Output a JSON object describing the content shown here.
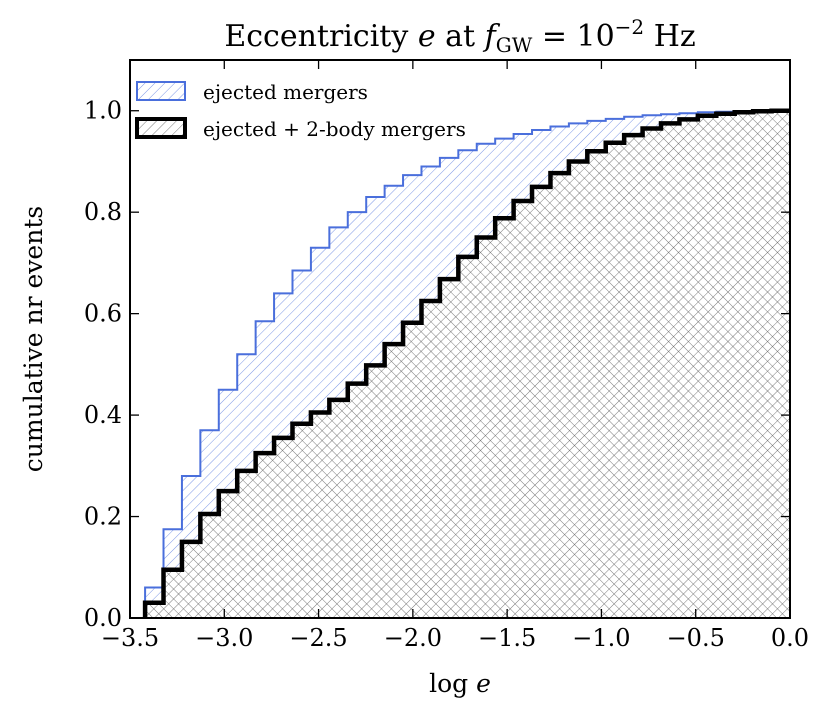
{
  "colors": {
    "ejected": "#4a6fdc",
    "combined": "#000000",
    "hatch_ejected": "#7d97e6",
    "hatch_combined": "#5a5a5a",
    "background": "#ffffff"
  },
  "chart_data": {
    "type": "histogram-step-cumulative",
    "title_parts": {
      "prefix": "Eccentricity ",
      "var_e": "e",
      "at": " at ",
      "f": "f",
      "sub": "GW",
      "eq": " = 10",
      "exp": "−2",
      "unit": " Hz"
    },
    "xlabel": {
      "prefix": "log ",
      "var": "e"
    },
    "ylabel": "cumulative nr events",
    "xlim": [
      -3.5,
      0.0
    ],
    "ylim": [
      0.0,
      1.1
    ],
    "xticks": [
      -3.5,
      -3.0,
      -2.5,
      -2.0,
      -1.5,
      -1.0,
      -0.5,
      0.0
    ],
    "xtick_labels": [
      "−3.5",
      "−3.0",
      "−2.5",
      "−2.0",
      "−1.5",
      "−1.0",
      "−0.5",
      "0.0"
    ],
    "yticks": [
      0.0,
      0.2,
      0.4,
      0.6,
      0.8,
      1.0
    ],
    "ytick_labels": [
      "0.0",
      "0.2",
      "0.4",
      "0.6",
      "0.8",
      "1.0"
    ],
    "grid": false,
    "legend": {
      "position": "top-left",
      "entries": [
        "ejected mergers",
        "ejected + 2-body mergers"
      ]
    },
    "bin_start": -3.42,
    "bin_end": 0.0,
    "series": [
      {
        "name": "ejected mergers",
        "style": "thin-step-hatched",
        "values": [
          0.06,
          0.175,
          0.28,
          0.37,
          0.45,
          0.52,
          0.585,
          0.64,
          0.685,
          0.73,
          0.77,
          0.8,
          0.83,
          0.852,
          0.873,
          0.89,
          0.907,
          0.922,
          0.935,
          0.945,
          0.954,
          0.962,
          0.969,
          0.975,
          0.98,
          0.984,
          0.988,
          0.991,
          0.993,
          0.995,
          0.997,
          0.998,
          0.999,
          0.9995,
          1.0
        ]
      },
      {
        "name": "ejected + 2-body mergers",
        "style": "thick-step-hatched",
        "values": [
          0.03,
          0.095,
          0.15,
          0.205,
          0.25,
          0.29,
          0.325,
          0.355,
          0.383,
          0.405,
          0.43,
          0.462,
          0.498,
          0.54,
          0.582,
          0.625,
          0.668,
          0.712,
          0.75,
          0.788,
          0.822,
          0.85,
          0.877,
          0.9,
          0.92,
          0.937,
          0.952,
          0.965,
          0.975,
          0.983,
          0.99,
          0.994,
          0.997,
          0.999,
          1.0
        ]
      }
    ]
  }
}
